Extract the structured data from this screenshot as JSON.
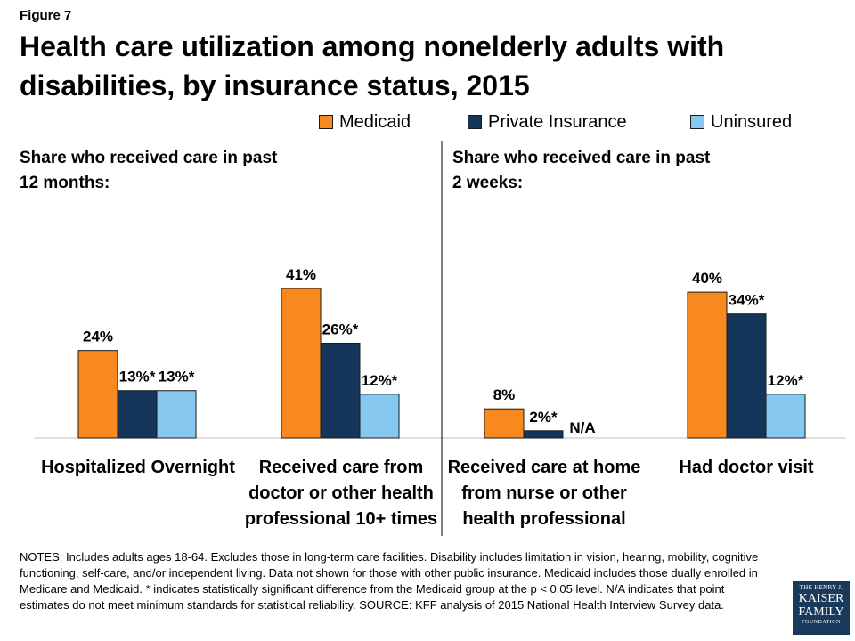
{
  "figure_label": "Figure 7",
  "title": "Health care utilization among nonelderly adults with disabilities, by insurance status, 2015",
  "legend": [
    {
      "label": "Medicaid",
      "color": "#f7891f"
    },
    {
      "label": "Private Insurance",
      "color": "#15365a"
    },
    {
      "label": "Uninsured",
      "color": "#86c8ef"
    }
  ],
  "subheadings": {
    "left": "Share who received care in past 12 months:",
    "right": "Share who received care in past 2 weeks:"
  },
  "chart_data": {
    "type": "bar",
    "categories": [
      "Hospitalized Overnight",
      "Received care from doctor or other health professional 10+ times",
      "Received care at home from nurse or other health professional",
      "Had doctor visit"
    ],
    "series": [
      {
        "name": "Medicaid",
        "color": "#f7891f",
        "values": [
          24,
          41,
          8,
          40
        ],
        "labels": [
          "24%",
          "41%",
          "8%",
          "40%"
        ]
      },
      {
        "name": "Private Insurance",
        "color": "#15365a",
        "values": [
          13,
          26,
          2,
          34
        ],
        "labels": [
          "13%*",
          "26%*",
          "2%*",
          "34%*"
        ]
      },
      {
        "name": "Uninsured",
        "color": "#86c8ef",
        "values": [
          13,
          12,
          null,
          12
        ],
        "labels": [
          "13%*",
          "12%*",
          "N/A",
          "12%*"
        ]
      }
    ],
    "ylim": [
      0,
      41
    ],
    "grid": false,
    "legend_position": "top-right"
  },
  "notes": "NOTES:  Includes adults ages 18-64. Excludes those in long-term care facilities. Disability includes limitation in vision, hearing, mobility, cognitive functioning, self-care, and/or independent living. Data not shown for those with other public insurance. Medicaid includes those dually enrolled in Medicare and Medicaid. * indicates statistically significant difference from the Medicaid group at the p < 0.05 level. N/A indicates that point estimates do not meet minimum standards for statistical reliability. SOURCE: KFF analysis of 2015 National Health Interview Survey data.",
  "logo": {
    "line1": "THE HENRY J.",
    "line2": "KAISER",
    "line3": "FAMILY",
    "line4": "FOUNDATION"
  }
}
